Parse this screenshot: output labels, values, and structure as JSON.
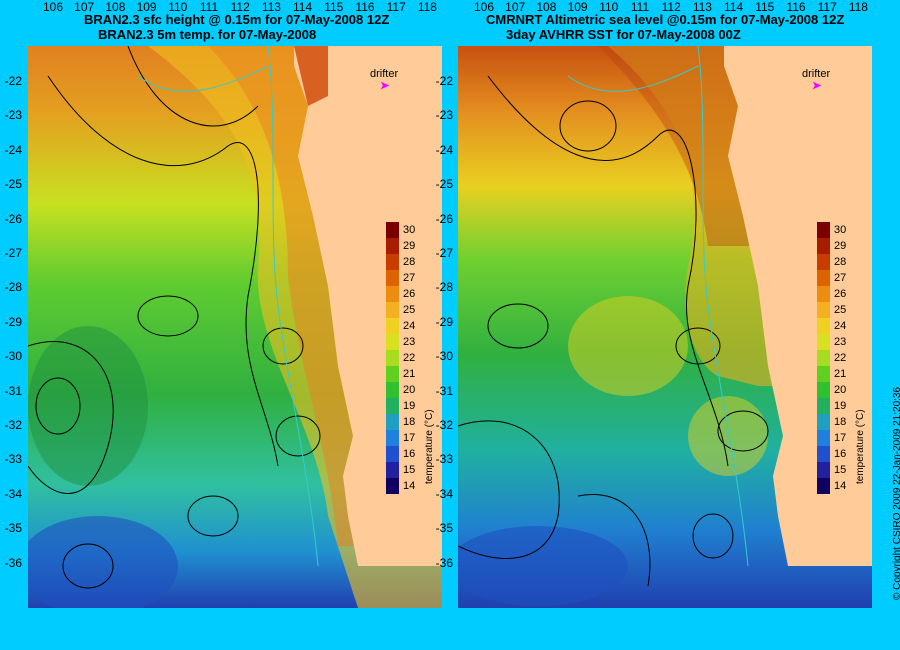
{
  "left_panel": {
    "title_line1": "BRAN2.3 sfc height @ 0.15m for 07-May-2008 12Z",
    "title_line2": "BRAN2.3 5m temp. for 07-May-2008"
  },
  "right_panel": {
    "title_line1": "CMRNRT Altimetric sea level  @0.15m  for 07-May-2008 12Z",
    "title_line2": "3day AVHRR SST for 07-May-2008 00Z"
  },
  "lat_labels": [
    "-22",
    "-23",
    "-24",
    "-25",
    "-26",
    "-27",
    "-28",
    "-29",
    "-30",
    "-31",
    "-32",
    "-33",
    "-34",
    "-35",
    "-36"
  ],
  "lon_labels": [
    "106",
    "107",
    "108",
    "109",
    "110",
    "111",
    "112",
    "113",
    "114",
    "115",
    "116",
    "117",
    "118"
  ],
  "colorbar": {
    "ticks": [
      "30",
      "29",
      "28",
      "27",
      "26",
      "25",
      "24",
      "23",
      "22",
      "21",
      "20",
      "19",
      "18",
      "17",
      "16",
      "15",
      "14"
    ],
    "title": "temperature (°C)",
    "colors": [
      "#7a0000",
      "#a81c00",
      "#c83c00",
      "#dc6400",
      "#ec8c10",
      "#f4b020",
      "#f0d020",
      "#d8e020",
      "#a8dc20",
      "#60d020",
      "#30c030",
      "#20b060",
      "#20a0c0",
      "#2080e0",
      "#2050d0",
      "#2020a0",
      "#100060"
    ]
  },
  "legend": {
    "drifter_label": "drifter",
    "drifter_symbol": "➤"
  },
  "copyright": "© Copyright CSIRO 2009   22-Jan-2009 21:20:36",
  "colors": {
    "background": "#00ccff",
    "land": "#ffcc99",
    "contour": "#000000",
    "bathymetry": "#33cccc"
  }
}
